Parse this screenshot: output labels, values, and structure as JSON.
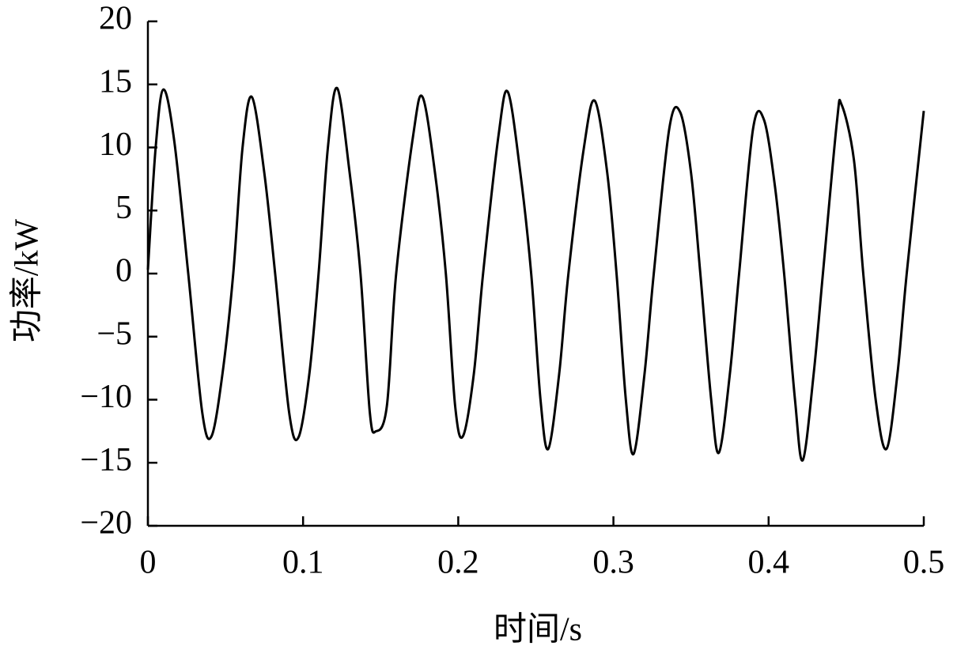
{
  "chart_data": {
    "type": "line",
    "x_label": "时间/s",
    "y_label": "功率/kW",
    "x": [
      0,
      0.005,
      0.01,
      0.017,
      0.026,
      0.035,
      0.041,
      0.048,
      0.055,
      0.061,
      0.067,
      0.075,
      0.082,
      0.091,
      0.097,
      0.104,
      0.11,
      0.116,
      0.122,
      0.13,
      0.137,
      0.143,
      0.147,
      0.154,
      0.16,
      0.171,
      0.177,
      0.185,
      0.192,
      0.198,
      0.203,
      0.21,
      0.216,
      0.226,
      0.232,
      0.24,
      0.247,
      0.253,
      0.258,
      0.265,
      0.271,
      0.281,
      0.288,
      0.296,
      0.302,
      0.308,
      0.313,
      0.32,
      0.326,
      0.336,
      0.343,
      0.35,
      0.356,
      0.363,
      0.368,
      0.375,
      0.381,
      0.39,
      0.397,
      0.404,
      0.41,
      0.417,
      0.422,
      0.429,
      0.435,
      0.444,
      0.447,
      0.455,
      0.461,
      0.469,
      0.476,
      0.483,
      0.489,
      0.5
    ],
    "series": [
      {
        "name": "功率",
        "color": "#000000",
        "values": [
          0.3,
          10,
          14.6,
          10.5,
          0,
          -11,
          -12.9,
          -8,
          0,
          10,
          14,
          8,
          0,
          -11,
          -13,
          -8,
          0,
          10,
          14.7,
          8,
          0,
          -11,
          -12.5,
          -10.5,
          0,
          11,
          14,
          8,
          0,
          -10.5,
          -12.9,
          -8,
          0,
          11,
          14.4,
          8,
          0,
          -10,
          -13.9,
          -8,
          0,
          10,
          13.7,
          8,
          0,
          -10,
          -14.3,
          -8,
          0,
          11.5,
          12.8,
          8,
          0,
          -10,
          -14.2,
          -8,
          0,
          11.5,
          12.2,
          7,
          0,
          -10,
          -14.8,
          -8,
          0,
          12,
          13.4,
          9,
          0,
          -10,
          -13.9,
          -8,
          0,
          12.9
        ]
      }
    ],
    "xlim": [
      0,
      0.5
    ],
    "xticks": [
      0,
      0.1,
      0.2,
      0.3,
      0.4,
      0.5
    ],
    "ylim": [
      -20,
      20
    ],
    "yticks": [
      {
        "value": -20,
        "label": "−20"
      },
      {
        "value": -15,
        "label": "−15"
      },
      {
        "value": -10,
        "label": "−10"
      },
      {
        "value": -5,
        "label": "−5"
      },
      0,
      5,
      10,
      15,
      20
    ],
    "grid": false
  }
}
